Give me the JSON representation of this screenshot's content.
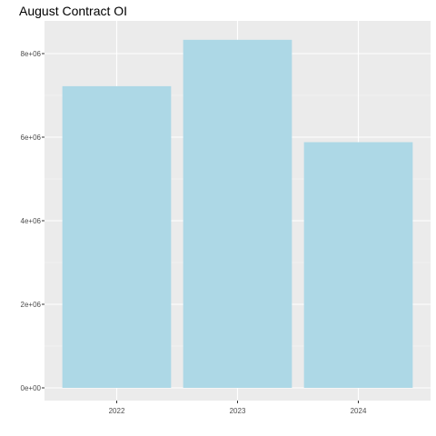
{
  "chart_data": {
    "type": "bar",
    "title": "August Contract OI",
    "xlabel": "",
    "ylabel": "",
    "categories": [
      "2022",
      "2023",
      "2024"
    ],
    "values": [
      7220000,
      8330000,
      5880000
    ],
    "ylim": [
      0,
      8700000
    ],
    "yticks": [
      0,
      2000000,
      4000000,
      6000000,
      8000000
    ],
    "ytick_labels": [
      "0e+00",
      "2e+06",
      "4e+06",
      "6e+06",
      "8e+06"
    ],
    "grid": true,
    "legend": "none"
  },
  "colors": {
    "bar_fill": "#add8e6",
    "panel_background": "#ebebeb",
    "grid_major": "#ffffff",
    "grid_minor": "#f5f5f5",
    "tick_text": "#4d4d4d",
    "tick_mark": "#333333",
    "title_text": "#000000"
  }
}
